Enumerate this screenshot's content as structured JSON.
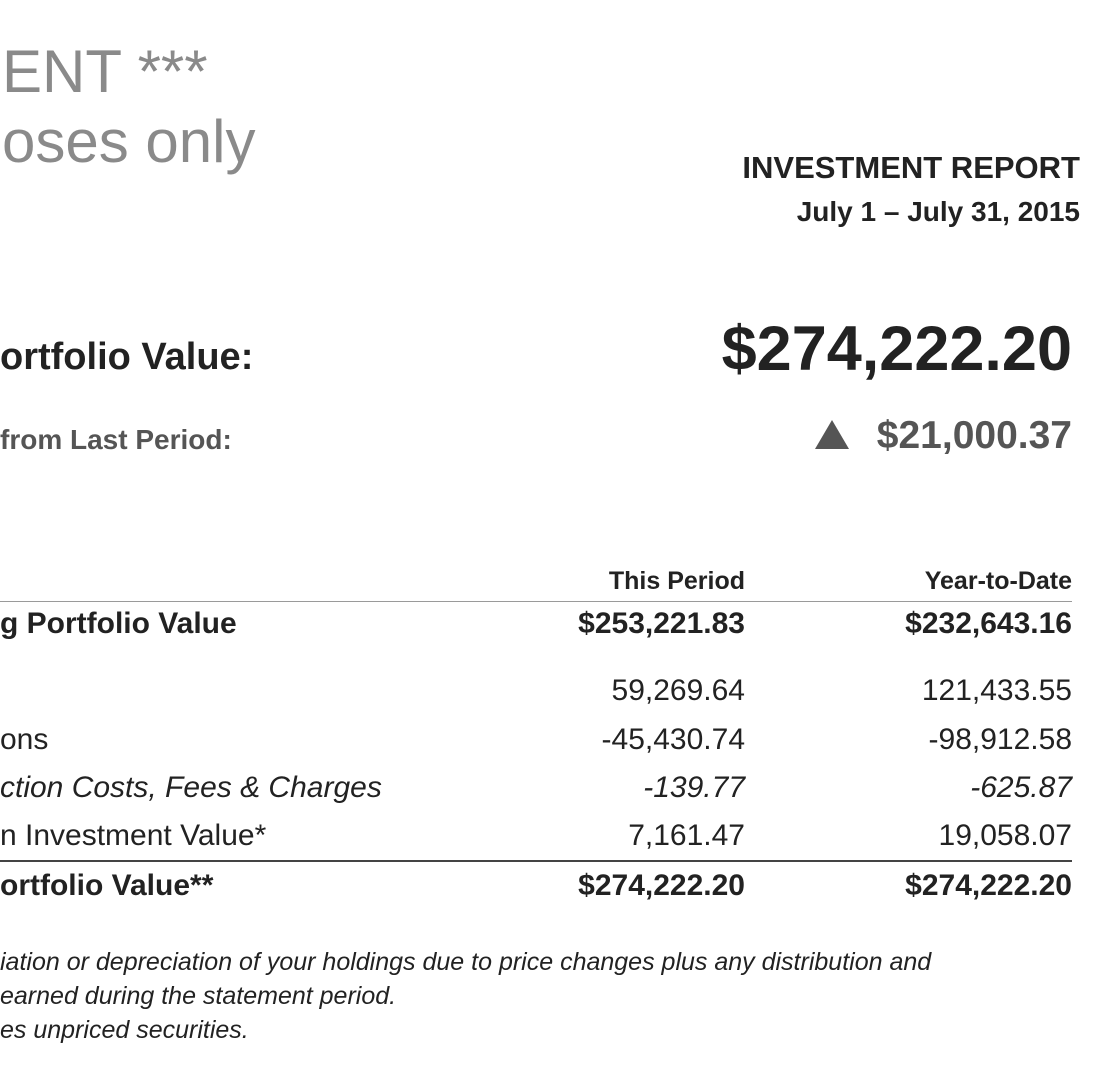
{
  "watermark": {
    "line1": "ENT ***",
    "line2": "oses only"
  },
  "report": {
    "title": "INVESTMENT REPORT",
    "period": "July 1 – July 31, 2015"
  },
  "summary": {
    "portfolio_label": "ortfolio Value:",
    "portfolio_value": "$274,222.20",
    "change_label": "from Last Period:",
    "change_icon": "up-triangle-icon",
    "change_value": "$21,000.37"
  },
  "table": {
    "headers": [
      "This Period",
      "Year-to-Date"
    ],
    "rows": [
      {
        "label": "g Portfolio Value",
        "this_period": "$253,221.83",
        "ytd": "$232,643.16"
      },
      {
        "label": "",
        "this_period": "59,269.64",
        "ytd": "121,433.55"
      },
      {
        "label": "ons",
        "this_period": "-45,430.74",
        "ytd": "-98,912.58"
      },
      {
        "label": "ction Costs, Fees & Charges",
        "this_period": "-139.77",
        "ytd": "-625.87"
      },
      {
        "label": "n Investment Value*",
        "this_period": "7,161.47",
        "ytd": "19,058.07"
      },
      {
        "label": "ortfolio Value**",
        "this_period": "$274,222.20",
        "ytd": "$274,222.20"
      }
    ]
  },
  "footnotes": {
    "line1": "iation or depreciation of your holdings due to price changes plus any distribution and",
    "line2": " earned during the statement period.",
    "line3": "es unpriced securities."
  }
}
